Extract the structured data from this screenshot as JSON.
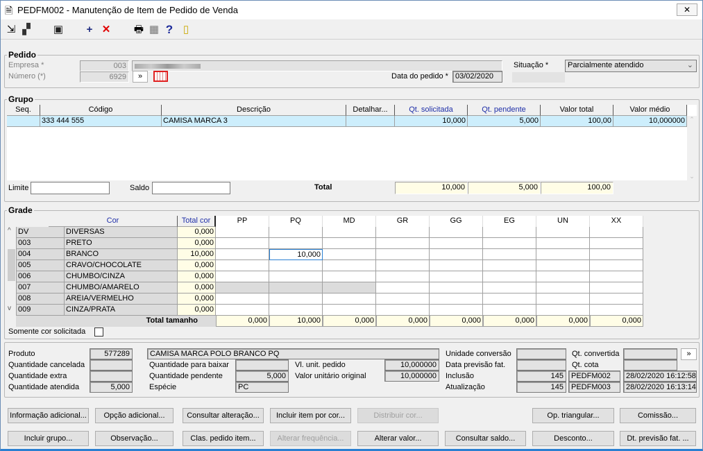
{
  "window": {
    "title": "PEDFM002 - Manutenção de Item de Pedido de Venda",
    "close": "✕"
  },
  "toolbar": {
    "icons": [
      "export-icon",
      "copy-icon",
      "save-icon",
      "add-icon",
      "delete-icon",
      "print-icon",
      "grid-icon",
      "help-icon",
      "exit-icon"
    ],
    "add": "+",
    "delete": "✕",
    "help": "?"
  },
  "pedido": {
    "title": "Pedido",
    "empresa_label": "Empresa *",
    "empresa": "003",
    "empresa_nome": "",
    "numero_label": "Número (*)",
    "numero": "6929",
    "nav_btn": "»",
    "data_label": "Data do pedido *",
    "data": "03/02/2020",
    "situacao_label": "Situação *",
    "situacao": "Parcialmente atendido"
  },
  "grupo": {
    "title": "Grupo",
    "columns": [
      "Seq.",
      "Código",
      "Descrição",
      "Detalhar...",
      "Qt. solicitada",
      "Qt. pendente",
      "Valor total",
      "Valor médio"
    ],
    "rows": [
      [
        "",
        "333 444 555",
        "CAMISA MARCA 3",
        "",
        "10,000",
        "5,000",
        "100,00",
        "10,000000"
      ]
    ],
    "limite_label": "Limite",
    "limite": "",
    "saldo_label": "Saldo",
    "saldo": "",
    "total_label": "Total",
    "totals": [
      "10,000",
      "5,000",
      "100,00"
    ]
  },
  "grade": {
    "title": "Grade",
    "col_cor": "Cor",
    "col_total": "Total cor",
    "sizes": [
      "PP",
      "PQ",
      "MD",
      "GR",
      "GG",
      "EG",
      "UN",
      "XX"
    ],
    "rows": [
      {
        "code": "DV",
        "name": "DIVERSAS",
        "total": "0,000",
        "values": [
          "",
          "",
          "",
          "",
          "",
          "",
          "",
          ""
        ]
      },
      {
        "code": "003",
        "name": "PRETO",
        "total": "0,000",
        "values": [
          "",
          "",
          "",
          "",
          "",
          "",
          "",
          ""
        ]
      },
      {
        "code": "004",
        "name": "BRANCO",
        "total": "10,000",
        "values": [
          "",
          "10,000",
          "",
          "",
          "",
          "",
          "",
          ""
        ]
      },
      {
        "code": "005",
        "name": "CRAVO/CHOCOLATE",
        "total": "0,000",
        "values": [
          "",
          "",
          "",
          "",
          "",
          "",
          "",
          ""
        ]
      },
      {
        "code": "006",
        "name": "CHUMBO/CINZA",
        "total": "0,000",
        "values": [
          "",
          "",
          "",
          "",
          "",
          "",
          "",
          ""
        ]
      },
      {
        "code": "007",
        "name": "CHUMBO/AMARELO",
        "total": "0,000",
        "values": [
          "",
          "",
          "",
          "",
          "",
          "",
          "",
          ""
        ],
        "disabled_sizes": [
          0,
          1,
          2
        ]
      },
      {
        "code": "008",
        "name": "AREIA/VERMELHO",
        "total": "0,000",
        "values": [
          "",
          "",
          "",
          "",
          "",
          "",
          "",
          ""
        ]
      },
      {
        "code": "009",
        "name": "CINZA/PRATA",
        "total": "0,000",
        "values": [
          "",
          "",
          "",
          "",
          "",
          "",
          "",
          ""
        ]
      }
    ],
    "total_label": "Total tamanho",
    "totals": [
      "0,000",
      "10,000",
      "0,000",
      "0,000",
      "0,000",
      "0,000",
      "0,000",
      "0,000"
    ],
    "somente_label": "Somente cor solicitada",
    "somente_checked": false
  },
  "info": {
    "produto_label": "Produto",
    "produto": "577289",
    "produto_nome": "CAMISA MARCA POLO BRANCO PQ",
    "qt_cancelada_label": "Quantidade cancelada",
    "qt_cancelada": "",
    "qt_extra_label": "Quantidade extra",
    "qt_extra": "",
    "qt_atendida_label": "Quantidade atendida",
    "qt_atendida": "5,000",
    "qt_baixar_label": "Quantidade para baixar",
    "qt_baixar": "",
    "qt_pendente_label": "Quantidade pendente",
    "qt_pendente": "5,000",
    "especie_label": "Espécie",
    "especie": "PC",
    "vl_unit_label": "Vl. unit. pedido",
    "vl_unit": "10,000000",
    "vl_orig_label": "Valor unitário original",
    "vl_orig": "10,000000",
    "un_conv_label": "Unidade conversão",
    "un_conv": "",
    "dt_prev_label": "Data previsão fat.",
    "dt_prev": "",
    "inclusao_label": "Inclusão",
    "inclusao_user": "145",
    "inclusao_prog": "PEDFM002",
    "inclusao_dt": "28/02/2020 16:12:58",
    "atualizacao_label": "Atualização",
    "atualizacao_user": "145",
    "atualizacao_prog": "PEDFM003",
    "atualizacao_dt": "28/02/2020 16:13:14",
    "qt_conv_label": "Qt. convertida",
    "qt_conv": "",
    "qt_cota_label": "Qt. cota",
    "qt_cota": "",
    "more_btn": "»"
  },
  "buttons": {
    "info_adicional": "Informação adicional...",
    "opcao_adicional": "Opção adicional...",
    "consultar_alteracao": "Consultar alteração...",
    "incluir_item_cor": "Incluir item por cor...",
    "distribuir_cor": "Distribuir cor...",
    "op_triangular": "Op. triangular...",
    "comissao": "Comissão...",
    "incluir_grupo": "Incluir grupo...",
    "observacao": "Observação...",
    "clas_pedido": "Clas. pedido item...",
    "alterar_frequencia": "Alterar frequência...",
    "alterar_valor": "Alterar valor...",
    "consultar_saldo": "Consultar saldo...",
    "desconto": "Desconto...",
    "dt_previsao": "Dt. previsão fat. ..."
  }
}
